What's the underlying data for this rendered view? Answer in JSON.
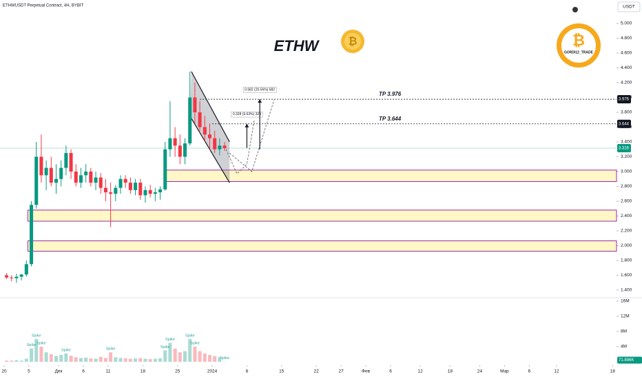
{
  "header": {
    "symbol": "ETHWUSDT Perpetual Contract, 4H, BYBIT",
    "currency": "USDT"
  },
  "logo": {
    "text": "GORDI12_TRADE"
  },
  "chart_data": {
    "type": "candlestick",
    "title": "ETHW",
    "x": [
      0.5,
      1.5,
      2.5,
      3.5,
      4.5,
      5.5,
      6.5,
      7.5,
      8.5,
      9.5,
      10.5,
      11.5,
      12.5,
      13.5,
      14.5,
      15.5,
      16.5,
      17.5,
      18.5,
      19.5,
      20.5,
      21.5,
      22.5,
      23.5,
      24.5,
      25.5,
      26.5,
      27.5,
      28.5,
      29.5,
      30.5,
      31.5,
      32.5,
      33.5,
      34.5,
      35.5,
      36.5,
      37.5,
      38.5,
      39.5,
      40.5,
      41.5,
      42.5,
      43.5,
      44.5
    ],
    "open": [
      1.6,
      1.57,
      1.56,
      1.58,
      1.61,
      1.75,
      2.55,
      3.2,
      2.95,
      3.05,
      2.85,
      2.9,
      3.05,
      3.25,
      3.0,
      2.85,
      2.95,
      3.0,
      2.85,
      2.92,
      2.78,
      2.72,
      2.7,
      2.78,
      2.9,
      2.85,
      2.75,
      2.85,
      2.68,
      2.75,
      2.7,
      2.72,
      2.76,
      3.3,
      3.45,
      3.35,
      3.2,
      3.38,
      4.0,
      3.8,
      3.6,
      3.5,
      3.45,
      3.3,
      3.35
    ],
    "high": [
      1.63,
      1.6,
      1.62,
      1.62,
      1.8,
      2.6,
      3.4,
      3.5,
      3.15,
      3.2,
      3.1,
      3.15,
      3.35,
      3.3,
      3.1,
      3.05,
      3.1,
      3.05,
      3.0,
      2.98,
      2.9,
      2.85,
      2.82,
      2.95,
      2.95,
      2.92,
      2.9,
      2.9,
      2.8,
      2.82,
      2.78,
      2.8,
      3.4,
      3.95,
      3.6,
      3.5,
      3.45,
      4.35,
      4.2,
      3.95,
      3.75,
      3.65,
      3.55,
      3.45,
      3.4
    ],
    "low": [
      1.55,
      1.52,
      1.5,
      1.53,
      1.58,
      1.72,
      2.5,
      2.85,
      2.75,
      2.8,
      2.7,
      2.8,
      2.95,
      2.9,
      2.8,
      2.78,
      2.85,
      2.8,
      2.75,
      2.7,
      2.6,
      2.25,
      2.6,
      2.7,
      2.78,
      2.7,
      2.68,
      2.62,
      2.58,
      2.65,
      2.6,
      2.62,
      2.74,
      3.2,
      3.2,
      3.1,
      3.1,
      3.35,
      3.65,
      3.55,
      3.4,
      3.3,
      3.25,
      3.22,
      3.28
    ],
    "close": [
      1.57,
      1.56,
      1.58,
      1.61,
      1.75,
      2.55,
      3.2,
      2.95,
      3.05,
      2.85,
      2.9,
      3.05,
      3.25,
      3.0,
      2.85,
      2.95,
      3.0,
      2.85,
      2.92,
      2.78,
      2.72,
      2.7,
      2.78,
      2.9,
      2.85,
      2.75,
      2.85,
      2.68,
      2.75,
      2.7,
      2.72,
      2.76,
      3.3,
      3.45,
      3.35,
      3.2,
      3.38,
      4.0,
      3.8,
      3.6,
      3.5,
      3.45,
      3.3,
      3.35,
      3.316
    ],
    "up_color": "#089981",
    "down_color": "#f23645",
    "xlim": [
      -0.83,
      123.6
    ],
    "xticks": [
      {
        "value": 0,
        "label": "20"
      },
      5,
      {
        "value": 11,
        "label": "Дек"
      },
      {
        "value": 16,
        "label": "6"
      },
      {
        "value": 21,
        "label": "11"
      },
      {
        "value": 28,
        "label": "18"
      },
      {
        "value": 35,
        "label": "25"
      },
      {
        "value": 42,
        "label": "2024"
      },
      {
        "value": 49,
        "label": "8"
      },
      {
        "value": 56,
        "label": "15"
      },
      {
        "value": 63,
        "label": "22"
      },
      {
        "value": 68,
        "label": "27"
      },
      {
        "value": 73,
        "label": "Фев"
      },
      {
        "value": 78,
        "label": "6"
      },
      {
        "value": 84,
        "label": "12"
      },
      {
        "value": 90,
        "label": "18"
      },
      {
        "value": 96,
        "label": "24"
      },
      {
        "value": 101,
        "label": "Мар"
      },
      {
        "value": 106,
        "label": "6"
      },
      {
        "value": 111.5,
        "label": "12"
      },
      {
        "value": 122.8,
        "label": "18"
      }
    ],
    "ylim": [
      1.316,
      5.316
    ],
    "yticks": [
      {
        "value": 5,
        "label": "5.000"
      },
      {
        "value": 4.8,
        "label": "4.800"
      },
      {
        "value": 4.6,
        "label": "4.600"
      },
      {
        "value": 4.4,
        "label": "4.400"
      },
      {
        "value": 4.2,
        "label": "4.200"
      },
      {
        "value": 4,
        "label": "4.000"
      },
      {
        "value": 3.8,
        "label": "3.800"
      },
      {
        "value": 3.6,
        "label": "3.600"
      },
      {
        "value": 3.4,
        "label": "3.400"
      },
      {
        "value": 3.2,
        "label": "3.200"
      },
      {
        "value": 3,
        "label": "3.000"
      },
      {
        "value": 2.8,
        "label": "2.800"
      },
      {
        "value": 2.6,
        "label": "2.600"
      },
      {
        "value": 2.4,
        "label": "2.400"
      },
      {
        "value": 2.2,
        "label": "2.200"
      },
      {
        "value": 2,
        "label": "2.000"
      },
      {
        "value": 1.8,
        "label": "1.800"
      },
      {
        "value": 1.6,
        "label": "1.600"
      },
      {
        "value": 1.4,
        "label": "1.400"
      }
    ],
    "last_price": 3.316,
    "last_price_color": "#089981",
    "targets": [
      {
        "label": "TP 3.976",
        "value": 3.976,
        "start": 39.5
      },
      {
        "label": "TP 3.644",
        "value": 3.644,
        "start": 42
      }
    ],
    "zones": [
      {
        "top": 3.02,
        "bottom": 2.865,
        "start": 32.7
      },
      {
        "top": 2.48,
        "bottom": 2.33,
        "start": 4.8
      },
      {
        "top": 2.065,
        "bottom": 1.925,
        "start": 4.8
      }
    ],
    "zone_color": "#9c27b0",
    "channel": {
      "upper": {
        "days": [
          37.8,
          45.5
        ],
        "prices": [
          4.35,
          3.4
        ]
      },
      "lower": {
        "days": [
          37.5,
          45.5
        ],
        "prices": [
          3.75,
          2.85
        ]
      }
    },
    "projections": [
      {
        "days": [
          44.8,
          47,
          49,
          50.5
        ],
        "prices": [
          3.3,
          2.97,
          3.1,
          3.7
        ]
      },
      {
        "days": [
          45.5,
          50,
          54.5
        ],
        "prices": [
          3.25,
          3.0,
          3.97
        ]
      }
    ],
    "measures": [
      {
        "day": 49,
        "from": 3.32,
        "to": 3.644,
        "label": "0.328 (9.63%) 328"
      },
      {
        "day": 51.6,
        "from": 3.3,
        "to": 3.976,
        "label": "0.682 (20.56%) 682"
      }
    ],
    "volume": {
      "values": [
        300000,
        300000,
        400000,
        300000,
        800000,
        3500000,
        6000000,
        4000000,
        2500000,
        2000000,
        1500000,
        1800000,
        2200000,
        1600000,
        1200000,
        1000000,
        1100000,
        900000,
        800000,
        1300000,
        1000000,
        2500000,
        1200000,
        1000000,
        900000,
        800000,
        900000,
        1000000,
        800000,
        700000,
        800000,
        900000,
        3000000,
        5000000,
        3500000,
        2500000,
        2800000,
        6000000,
        4000000,
        2800000,
        2200000,
        1800000,
        1500000,
        1200000,
        71896
      ],
      "ylim": [
        0,
        16900000
      ],
      "yticks": [
        {
          "value": 16000000,
          "label": "16M"
        },
        {
          "value": 12000000,
          "label": "12M"
        },
        {
          "value": 8000000,
          "label": "8M"
        },
        {
          "value": 4000000,
          "label": "4M"
        }
      ],
      "last_label": "71.896K",
      "spike_label": "Spike",
      "spike_days": [
        5.5,
        6.5,
        7.5,
        12.5,
        21.5,
        32.5,
        33.5,
        37.5,
        38.5,
        44.5
      ]
    }
  }
}
